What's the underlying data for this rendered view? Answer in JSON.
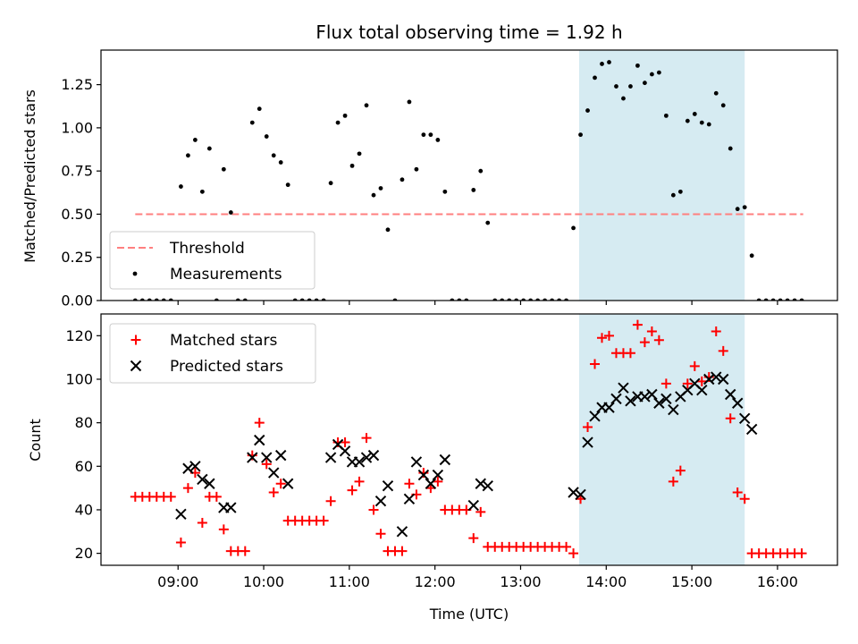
{
  "chart_data": [
    {
      "type": "scatter",
      "title": "Flux total observing time = 1.92 h",
      "xlabel": "",
      "ylabel": "Matched/Predicted stars",
      "xlim": [
        "08:06",
        "16:42"
      ],
      "ylim": [
        0,
        1.45
      ],
      "yticks": [
        "0.00",
        "0.25",
        "0.50",
        "0.75",
        "1.00",
        "1.25"
      ],
      "shaded_region": {
        "x_start": "13:41",
        "x_end": "15:37",
        "color": "#add8e6"
      },
      "threshold": {
        "name": "Threshold",
        "value": 0.5,
        "x_start": "08:30",
        "x_end": "16:18",
        "color": "#ff7f7f",
        "style": "dashed"
      },
      "legend": {
        "loc": "lower-left",
        "entries": [
          "Threshold",
          "Measurements"
        ]
      },
      "series": [
        {
          "name": "Measurements",
          "marker": "dot",
          "color": "#000000",
          "points": [
            [
              "08:30",
              0
            ],
            [
              "08:35",
              0
            ],
            [
              "08:40",
              0
            ],
            [
              "08:45",
              0
            ],
            [
              "08:50",
              0
            ],
            [
              "08:55",
              0
            ],
            [
              "09:02",
              0.66
            ],
            [
              "09:07",
              0.84
            ],
            [
              "09:12",
              0.93
            ],
            [
              "09:17",
              0.63
            ],
            [
              "09:22",
              0.88
            ],
            [
              "09:27",
              0
            ],
            [
              "09:32",
              0.76
            ],
            [
              "09:37",
              0.51
            ],
            [
              "09:42",
              0
            ],
            [
              "09:47",
              0
            ],
            [
              "09:52",
              1.03
            ],
            [
              "09:57",
              1.11
            ],
            [
              "10:02",
              0.95
            ],
            [
              "10:07",
              0.84
            ],
            [
              "10:12",
              0.8
            ],
            [
              "10:17",
              0.67
            ],
            [
              "10:22",
              0
            ],
            [
              "10:27",
              0
            ],
            [
              "10:32",
              0
            ],
            [
              "10:37",
              0
            ],
            [
              "10:42",
              0
            ],
            [
              "10:47",
              0.68
            ],
            [
              "10:52",
              1.03
            ],
            [
              "10:57",
              1.07
            ],
            [
              "11:02",
              0.78
            ],
            [
              "11:07",
              0.85
            ],
            [
              "11:12",
              1.13
            ],
            [
              "11:17",
              0.61
            ],
            [
              "11:22",
              0.65
            ],
            [
              "11:27",
              0.41
            ],
            [
              "11:32",
              0
            ],
            [
              "11:37",
              0.7
            ],
            [
              "11:42",
              1.15
            ],
            [
              "11:47",
              0.76
            ],
            [
              "11:52",
              0.96
            ],
            [
              "11:57",
              0.96
            ],
            [
              "12:02",
              0.93
            ],
            [
              "12:07",
              0.63
            ],
            [
              "12:12",
              0
            ],
            [
              "12:17",
              0
            ],
            [
              "12:22",
              0
            ],
            [
              "12:27",
              0.64
            ],
            [
              "12:32",
              0.75
            ],
            [
              "12:37",
              0.45
            ],
            [
              "12:42",
              0
            ],
            [
              "12:47",
              0
            ],
            [
              "12:52",
              0
            ],
            [
              "12:57",
              0
            ],
            [
              "13:02",
              0
            ],
            [
              "13:07",
              0
            ],
            [
              "13:12",
              0
            ],
            [
              "13:17",
              0
            ],
            [
              "13:22",
              0
            ],
            [
              "13:27",
              0
            ],
            [
              "13:32",
              0
            ],
            [
              "13:37",
              0.42
            ],
            [
              "13:42",
              0.96
            ],
            [
              "13:47",
              1.1
            ],
            [
              "13:52",
              1.29
            ],
            [
              "13:57",
              1.37
            ],
            [
              "14:02",
              1.38
            ],
            [
              "14:07",
              1.24
            ],
            [
              "14:12",
              1.17
            ],
            [
              "14:17",
              1.24
            ],
            [
              "14:22",
              1.36
            ],
            [
              "14:27",
              1.26
            ],
            [
              "14:32",
              1.31
            ],
            [
              "14:37",
              1.32
            ],
            [
              "14:42",
              1.07
            ],
            [
              "14:47",
              0.61
            ],
            [
              "14:52",
              0.63
            ],
            [
              "14:57",
              1.04
            ],
            [
              "15:02",
              1.08
            ],
            [
              "15:07",
              1.03
            ],
            [
              "15:12",
              1.02
            ],
            [
              "15:17",
              1.2
            ],
            [
              "15:22",
              1.13
            ],
            [
              "15:27",
              0.88
            ],
            [
              "15:32",
              0.53
            ],
            [
              "15:37",
              0.54
            ],
            [
              "15:42",
              0.26
            ],
            [
              "15:47",
              0
            ],
            [
              "15:52",
              0
            ],
            [
              "15:57",
              0
            ],
            [
              "16:02",
              0
            ],
            [
              "16:07",
              0
            ],
            [
              "16:12",
              0
            ],
            [
              "16:17",
              0
            ]
          ]
        }
      ]
    },
    {
      "type": "scatter",
      "title": "",
      "xlabel": "Time (UTC)",
      "ylabel": "Count",
      "xlim": [
        "08:06",
        "16:42"
      ],
      "ylim": [
        14.5,
        130
      ],
      "xticks": [
        "09:00",
        "10:00",
        "11:00",
        "12:00",
        "13:00",
        "14:00",
        "15:00",
        "16:00"
      ],
      "yticks": [
        "20",
        "40",
        "60",
        "80",
        "100",
        "120"
      ],
      "shaded_region": {
        "x_start": "13:41",
        "x_end": "15:37",
        "color": "#add8e6"
      },
      "legend": {
        "loc": "upper-left",
        "entries": [
          "Matched stars",
          "Predicted stars"
        ]
      },
      "series": [
        {
          "name": "Matched stars",
          "marker": "plus",
          "color": "#ff0000",
          "points": [
            [
              "08:30",
              46
            ],
            [
              "08:35",
              46
            ],
            [
              "08:40",
              46
            ],
            [
              "08:45",
              46
            ],
            [
              "08:50",
              46
            ],
            [
              "08:55",
              46
            ],
            [
              "09:02",
              25
            ],
            [
              "09:07",
              50
            ],
            [
              "09:12",
              57
            ],
            [
              "09:17",
              34
            ],
            [
              "09:22",
              46
            ],
            [
              "09:27",
              46
            ],
            [
              "09:32",
              31
            ],
            [
              "09:37",
              21
            ],
            [
              "09:42",
              21
            ],
            [
              "09:47",
              21
            ],
            [
              "09:52",
              65
            ],
            [
              "09:57",
              80
            ],
            [
              "10:02",
              61
            ],
            [
              "10:07",
              48
            ],
            [
              "10:12",
              52
            ],
            [
              "10:17",
              35
            ],
            [
              "10:22",
              35
            ],
            [
              "10:27",
              35
            ],
            [
              "10:32",
              35
            ],
            [
              "10:37",
              35
            ],
            [
              "10:42",
              35
            ],
            [
              "10:47",
              44
            ],
            [
              "10:52",
              71
            ],
            [
              "10:57",
              71
            ],
            [
              "11:02",
              49
            ],
            [
              "11:07",
              53
            ],
            [
              "11:12",
              73
            ],
            [
              "11:17",
              40
            ],
            [
              "11:22",
              29
            ],
            [
              "11:27",
              21
            ],
            [
              "11:32",
              21
            ],
            [
              "11:37",
              21
            ],
            [
              "11:42",
              52
            ],
            [
              "11:47",
              47
            ],
            [
              "11:52",
              57
            ],
            [
              "11:57",
              50
            ],
            [
              "12:02",
              53
            ],
            [
              "12:07",
              40
            ],
            [
              "12:12",
              40
            ],
            [
              "12:17",
              40
            ],
            [
              "12:22",
              40
            ],
            [
              "12:27",
              27
            ],
            [
              "12:32",
              39
            ],
            [
              "12:37",
              23
            ],
            [
              "12:42",
              23
            ],
            [
              "12:47",
              23
            ],
            [
              "12:52",
              23
            ],
            [
              "12:57",
              23
            ],
            [
              "13:02",
              23
            ],
            [
              "13:07",
              23
            ],
            [
              "13:12",
              23
            ],
            [
              "13:17",
              23
            ],
            [
              "13:22",
              23
            ],
            [
              "13:27",
              23
            ],
            [
              "13:32",
              23
            ],
            [
              "13:37",
              20
            ],
            [
              "13:42",
              45
            ],
            [
              "13:47",
              78
            ],
            [
              "13:52",
              107
            ],
            [
              "13:57",
              119
            ],
            [
              "14:02",
              120
            ],
            [
              "14:07",
              112
            ],
            [
              "14:12",
              112
            ],
            [
              "14:17",
              112
            ],
            [
              "14:22",
              125
            ],
            [
              "14:27",
              117
            ],
            [
              "14:32",
              122
            ],
            [
              "14:37",
              118
            ],
            [
              "14:42",
              98
            ],
            [
              "14:47",
              53
            ],
            [
              "14:52",
              58
            ],
            [
              "14:57",
              98
            ],
            [
              "15:02",
              106
            ],
            [
              "15:07",
              99
            ],
            [
              "15:12",
              101
            ],
            [
              "15:17",
              122
            ],
            [
              "15:22",
              113
            ],
            [
              "15:27",
              82
            ],
            [
              "15:32",
              48
            ],
            [
              "15:37",
              45
            ],
            [
              "15:42",
              20
            ],
            [
              "15:47",
              20
            ],
            [
              "15:52",
              20
            ],
            [
              "15:57",
              20
            ],
            [
              "16:02",
              20
            ],
            [
              "16:07",
              20
            ],
            [
              "16:12",
              20
            ],
            [
              "16:17",
              20
            ]
          ]
        },
        {
          "name": "Predicted stars",
          "marker": "x",
          "color": "#000000",
          "points": [
            [
              "09:02",
              38
            ],
            [
              "09:07",
              59
            ],
            [
              "09:12",
              60
            ],
            [
              "09:17",
              54
            ],
            [
              "09:22",
              52
            ],
            [
              "09:32",
              41
            ],
            [
              "09:37",
              41
            ],
            [
              "09:52",
              64
            ],
            [
              "09:57",
              72
            ],
            [
              "10:02",
              64
            ],
            [
              "10:07",
              57
            ],
            [
              "10:12",
              65
            ],
            [
              "10:17",
              52
            ],
            [
              "10:47",
              64
            ],
            [
              "10:52",
              70
            ],
            [
              "10:57",
              67
            ],
            [
              "11:02",
              62
            ],
            [
              "11:07",
              62
            ],
            [
              "11:12",
              64
            ],
            [
              "11:17",
              65
            ],
            [
              "11:22",
              44
            ],
            [
              "11:27",
              51
            ],
            [
              "11:37",
              30
            ],
            [
              "11:42",
              45
            ],
            [
              "11:47",
              62
            ],
            [
              "11:52",
              56
            ],
            [
              "11:57",
              52
            ],
            [
              "12:02",
              56
            ],
            [
              "12:07",
              63
            ],
            [
              "12:27",
              42
            ],
            [
              "12:32",
              52
            ],
            [
              "12:37",
              51
            ],
            [
              "13:37",
              48
            ],
            [
              "13:42",
              47
            ],
            [
              "13:47",
              71
            ],
            [
              "13:52",
              83
            ],
            [
              "13:57",
              87
            ],
            [
              "14:02",
              87
            ],
            [
              "14:07",
              91
            ],
            [
              "14:12",
              96
            ],
            [
              "14:17",
              90
            ],
            [
              "14:22",
              92
            ],
            [
              "14:27",
              92
            ],
            [
              "14:32",
              93
            ],
            [
              "14:37",
              89
            ],
            [
              "14:42",
              91
            ],
            [
              "14:47",
              86
            ],
            [
              "14:52",
              92
            ],
            [
              "14:57",
              95
            ],
            [
              "15:02",
              98
            ],
            [
              "15:07",
              95
            ],
            [
              "15:12",
              100
            ],
            [
              "15:17",
              101
            ],
            [
              "15:22",
              100
            ],
            [
              "15:27",
              93
            ],
            [
              "15:32",
              89
            ],
            [
              "15:37",
              82
            ],
            [
              "15:42",
              77
            ]
          ]
        }
      ]
    }
  ]
}
